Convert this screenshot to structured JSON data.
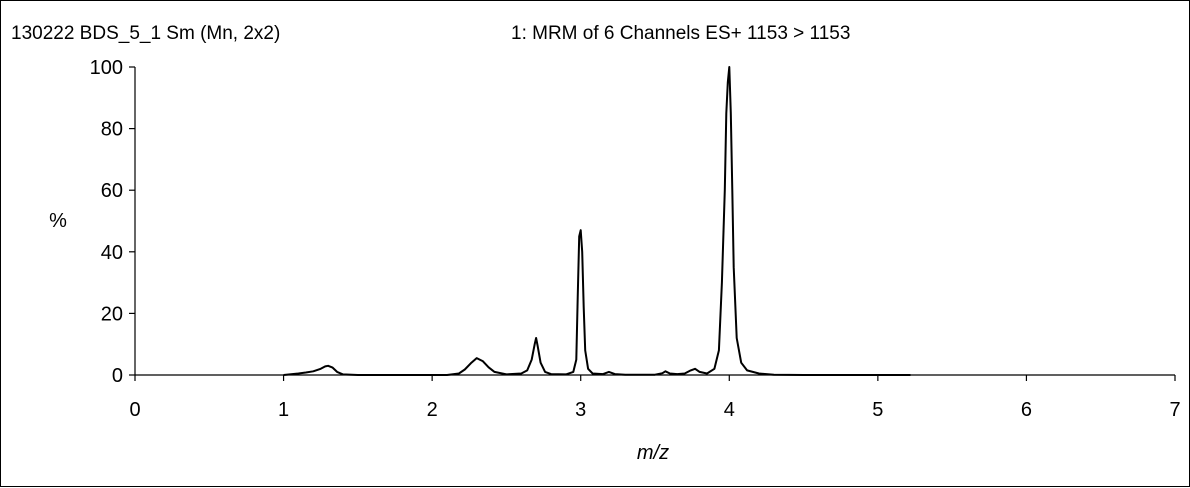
{
  "chart_data": {
    "type": "line",
    "sample_label": "130222 BDS_5_1 Sm (Mn, 2x2)",
    "title": "1: MRM of 6 Channels ES+ 1153 > 1153",
    "xlabel": "m/z",
    "ylabel": "%",
    "xlim": [
      0,
      7
    ],
    "ylim": [
      0,
      100
    ],
    "x_ticks": [
      0,
      1,
      2,
      3,
      4,
      5,
      6,
      7
    ],
    "y_ticks": [
      0,
      20,
      40,
      60,
      80,
      100
    ],
    "grid": false,
    "line_color": "#000000",
    "series": [
      {
        "x": [
          1.0,
          1.1,
          1.15,
          1.2,
          1.25,
          1.28,
          1.3,
          1.33,
          1.36,
          1.4,
          1.5,
          1.7,
          1.9,
          2.1,
          2.18,
          2.22,
          2.26,
          2.3,
          2.34,
          2.38,
          2.42,
          2.5,
          2.6,
          2.64,
          2.67,
          2.69,
          2.7,
          2.71,
          2.73,
          2.76,
          2.8,
          2.9,
          2.95,
          2.97,
          2.98,
          2.99,
          3.0,
          3.01,
          3.02,
          3.03,
          3.05,
          3.08,
          3.15,
          3.19,
          3.23,
          3.3,
          3.5,
          3.55,
          3.57,
          3.6,
          3.65,
          3.7,
          3.74,
          3.77,
          3.8,
          3.85,
          3.9,
          3.93,
          3.95,
          3.97,
          3.98,
          3.99,
          4.0,
          4.01,
          4.02,
          4.03,
          4.05,
          4.08,
          4.12,
          4.2,
          4.3,
          4.5,
          5.0,
          5.22
        ],
        "y": [
          0,
          0.5,
          0.8,
          1.2,
          2.0,
          2.8,
          3.0,
          2.4,
          1.0,
          0.2,
          0,
          0,
          0,
          0,
          0.5,
          1.8,
          3.8,
          5.5,
          4.5,
          2.5,
          1.0,
          0.2,
          0.5,
          1.5,
          5.0,
          10.0,
          12.0,
          9.5,
          4.0,
          1.0,
          0.3,
          0.2,
          1.0,
          5.0,
          25.0,
          45.0,
          47.0,
          40.0,
          22.0,
          8.0,
          2.0,
          0.5,
          0.3,
          1.0,
          0.3,
          0.1,
          0.1,
          0.6,
          1.2,
          0.5,
          0.3,
          0.5,
          1.5,
          2.0,
          1.0,
          0.5,
          2.0,
          8.0,
          30.0,
          60.0,
          85.0,
          95.0,
          100.0,
          85.0,
          60.0,
          35.0,
          12.0,
          4.0,
          1.5,
          0.5,
          0.1,
          0,
          0,
          0
        ]
      }
    ]
  }
}
